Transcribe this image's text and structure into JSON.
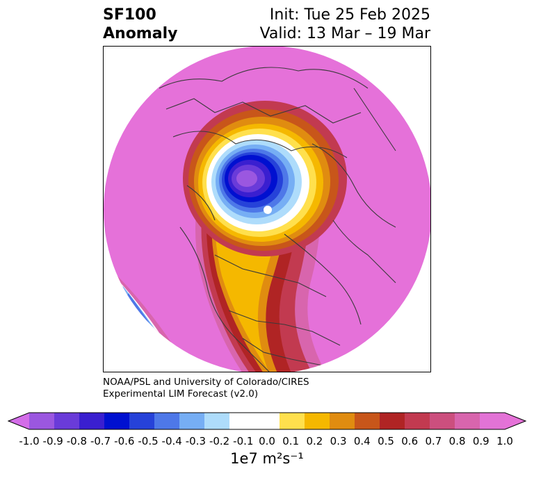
{
  "header": {
    "title_line1": "SF100",
    "title_line2": "Anomaly",
    "init": "Init: Tue 25 Feb 2025",
    "valid": "Valid: 13 Mar – 19 Mar"
  },
  "credit": {
    "line1": "NOAA/PSL and University of Colorado/CIRES",
    "line2": "Experimental LIM Forecast (v2.0)"
  },
  "colorbar": {
    "ticks": [
      "-1.0",
      "-0.9",
      "-0.8",
      "-0.7",
      "-0.6",
      "-0.5",
      "-0.4",
      "-0.3",
      "-0.2",
      "-0.1",
      "0.0",
      "0.1",
      "0.2",
      "0.3",
      "0.4",
      "0.5",
      "0.6",
      "0.7",
      "0.8",
      "0.9",
      "1.0"
    ],
    "colors": [
      "#9b57e0",
      "#6a3bd9",
      "#3a1fd0",
      "#0010d0",
      "#2642d9",
      "#4e78e8",
      "#76aef4",
      "#aedcfb",
      "#ffffff",
      "#ffffff",
      "#ffe04d",
      "#f5b800",
      "#e08c10",
      "#c8561a",
      "#b02424",
      "#c23a50",
      "#cc4f7e",
      "#d865ad",
      "#e273d6"
    ],
    "under_color": "#d36de8",
    "over_color": "#e572d8",
    "unit_text": "1e7 m²s⁻¹"
  },
  "map": {
    "background_fill": "#e571d9",
    "land_line_color": "#3a3a3a"
  }
}
